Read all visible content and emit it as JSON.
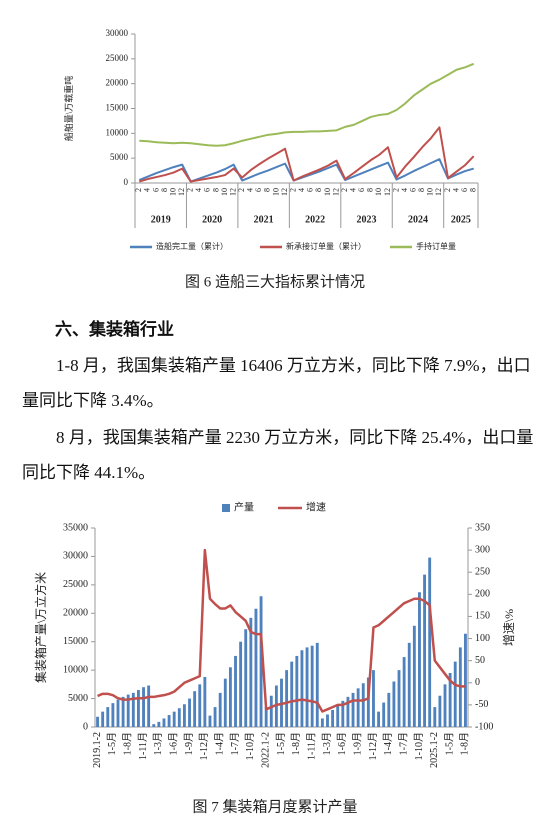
{
  "chart_data": [
    {
      "type": "line",
      "caption": "图 6  造船三大指标累计情况",
      "y_label": "船舶量\\万载重吨",
      "categories": [
        "2",
        "4",
        "6",
        "8",
        "10",
        "12",
        "2",
        "4",
        "6",
        "8",
        "10",
        "12",
        "2",
        "4",
        "6",
        "8",
        "10",
        "12",
        "2",
        "4",
        "6",
        "8",
        "10",
        "12",
        "2",
        "4",
        "6",
        "8",
        "10",
        "12",
        "2",
        "4",
        "6",
        "8",
        "10",
        "12",
        "2",
        "4",
        "6",
        "8"
      ],
      "year_labels": [
        "2019",
        "2020",
        "2021",
        "2022",
        "2023",
        "2024",
        "2025"
      ],
      "series": [
        {
          "name": "造船完工量（累计）",
          "color": "#4f81bd",
          "type": "line",
          "values": [
            600,
            1300,
            2000,
            2600,
            3200,
            3700,
            300,
            900,
            1500,
            2100,
            2800,
            3700,
            500,
            1200,
            1900,
            2500,
            3200,
            3900,
            500,
            1100,
            1700,
            2300,
            3000,
            3700,
            600,
            1300,
            2000,
            2700,
            3400,
            4100,
            700,
            1500,
            2400,
            3200,
            4000,
            4800,
            900,
            1700,
            2400,
            2900
          ]
        },
        {
          "name": "新承接订单量（累计）",
          "color": "#c0504d",
          "type": "line",
          "values": [
            300,
            800,
            1200,
            1600,
            2100,
            2900,
            300,
            600,
            900,
            1200,
            1600,
            2900,
            1100,
            2600,
            3800,
            4900,
            5900,
            6900,
            500,
            1300,
            2000,
            2700,
            3500,
            4500,
            800,
            2000,
            3300,
            4600,
            5700,
            7200,
            1100,
            3300,
            5200,
            7200,
            9000,
            11200,
            1000,
            2300,
            3600,
            5400
          ]
        },
        {
          "name": "手持订单量",
          "color": "#9bbb59",
          "type": "line",
          "values": [
            8500,
            8400,
            8200,
            8100,
            8000,
            8100,
            8000,
            7800,
            7600,
            7500,
            7600,
            8000,
            8500,
            8900,
            9300,
            9700,
            9900,
            10200,
            10300,
            10300,
            10400,
            10400,
            10500,
            10600,
            11300,
            11700,
            12500,
            13300,
            13700,
            13900,
            14700,
            16000,
            17600,
            18800,
            20000,
            20800,
            21800,
            22800,
            23300,
            24000
          ]
        }
      ],
      "ylim": [
        0,
        30000
      ],
      "yticks": [
        0,
        5000,
        10000,
        15000,
        20000,
        25000,
        30000
      ],
      "grid": false,
      "legend": "bottom"
    },
    {
      "type": "combo",
      "caption": "图 7  集装箱月度累计产量",
      "y_label": "集装箱产量\\万立方米",
      "y2_label": "增速\\%",
      "categories": [
        "2019.1-2",
        null,
        null,
        "1-5月",
        null,
        null,
        "1-8月",
        null,
        null,
        "1-11月",
        null,
        null,
        "1-3月",
        null,
        null,
        "1-6月",
        null,
        null,
        "1-9月",
        null,
        null,
        "1-12月",
        null,
        null,
        "1-4月",
        null,
        null,
        "1-7月",
        null,
        null,
        "1-10月",
        null,
        null,
        "2022.1-2",
        null,
        null,
        "1-5月",
        null,
        null,
        "1-8月",
        null,
        null,
        "1-11月",
        null,
        null,
        "1-3月",
        null,
        null,
        "1-6月",
        null,
        null,
        "1-9月",
        null,
        null,
        "1-12月",
        null,
        null,
        "1-4月",
        null,
        null,
        "1-7月",
        null,
        null,
        "1-10月",
        null,
        null,
        "2025.1-2",
        null,
        null,
        "1-5月",
        null,
        null,
        "1-8月"
      ],
      "series": [
        {
          "name": "产量",
          "color": "#4f81bd",
          "type": "bar",
          "values": [
            1800,
            2700,
            3500,
            4200,
            4800,
            5300,
            5700,
            6000,
            6500,
            7000,
            7300,
            500,
            900,
            1500,
            2100,
            2700,
            3300,
            4000,
            5000,
            6300,
            7500,
            8800,
            2000,
            3500,
            6000,
            8500,
            10500,
            12500,
            15000,
            17200,
            19200,
            20800,
            23000,
            3500,
            5500,
            7300,
            8500,
            10000,
            11500,
            12500,
            13500,
            14000,
            14300,
            14800,
            1500,
            2200,
            3000,
            3800,
            4600,
            5300,
            6000,
            6800,
            7700,
            8700,
            10000,
            2700,
            4300,
            6000,
            8000,
            10000,
            12300,
            14800,
            17800,
            23700,
            26800,
            29800,
            3500,
            5500,
            7500,
            9500,
            11500,
            14000,
            16406
          ]
        },
        {
          "name": "增速",
          "color": "#c0504d",
          "type": "line",
          "axis": "y2",
          "values": [
            -30,
            -25,
            -25,
            -28,
            -35,
            -38,
            -38,
            -36,
            -35,
            -35,
            -32,
            -32,
            -30,
            -28,
            -25,
            -20,
            -10,
            0,
            5,
            10,
            15,
            300,
            190,
            178,
            168,
            168,
            175,
            160,
            150,
            140,
            115,
            110,
            110,
            -60,
            -55,
            -50,
            -48,
            -45,
            -42,
            -40,
            -38,
            -40,
            -42,
            -45,
            -65,
            -60,
            -55,
            -50,
            -50,
            -45,
            -40,
            -40,
            -40,
            -35,
            125,
            130,
            140,
            150,
            160,
            170,
            180,
            185,
            190,
            190,
            185,
            175,
            50,
            35,
            20,
            5,
            -5,
            -8,
            -8
          ]
        }
      ],
      "ylim": [
        0,
        35000
      ],
      "yticks": [
        0,
        5000,
        10000,
        15000,
        20000,
        25000,
        30000,
        35000
      ],
      "y2lim": [
        -100,
        350
      ],
      "y2ticks": [
        -100,
        -50,
        0,
        50,
        100,
        150,
        200,
        250,
        300,
        350
      ],
      "grid": false,
      "legend": "top"
    }
  ],
  "heading": "六、集装箱行业",
  "paragraphs": [
    "1-8 月，我国集装箱产量 16406 万立方米，同比下降 7.9%，出口量同比下降 3.4%。",
    "8 月，我国集装箱产量 2230 万立方米，同比下降 25.4%，出口量同比下降 44.1%。"
  ]
}
